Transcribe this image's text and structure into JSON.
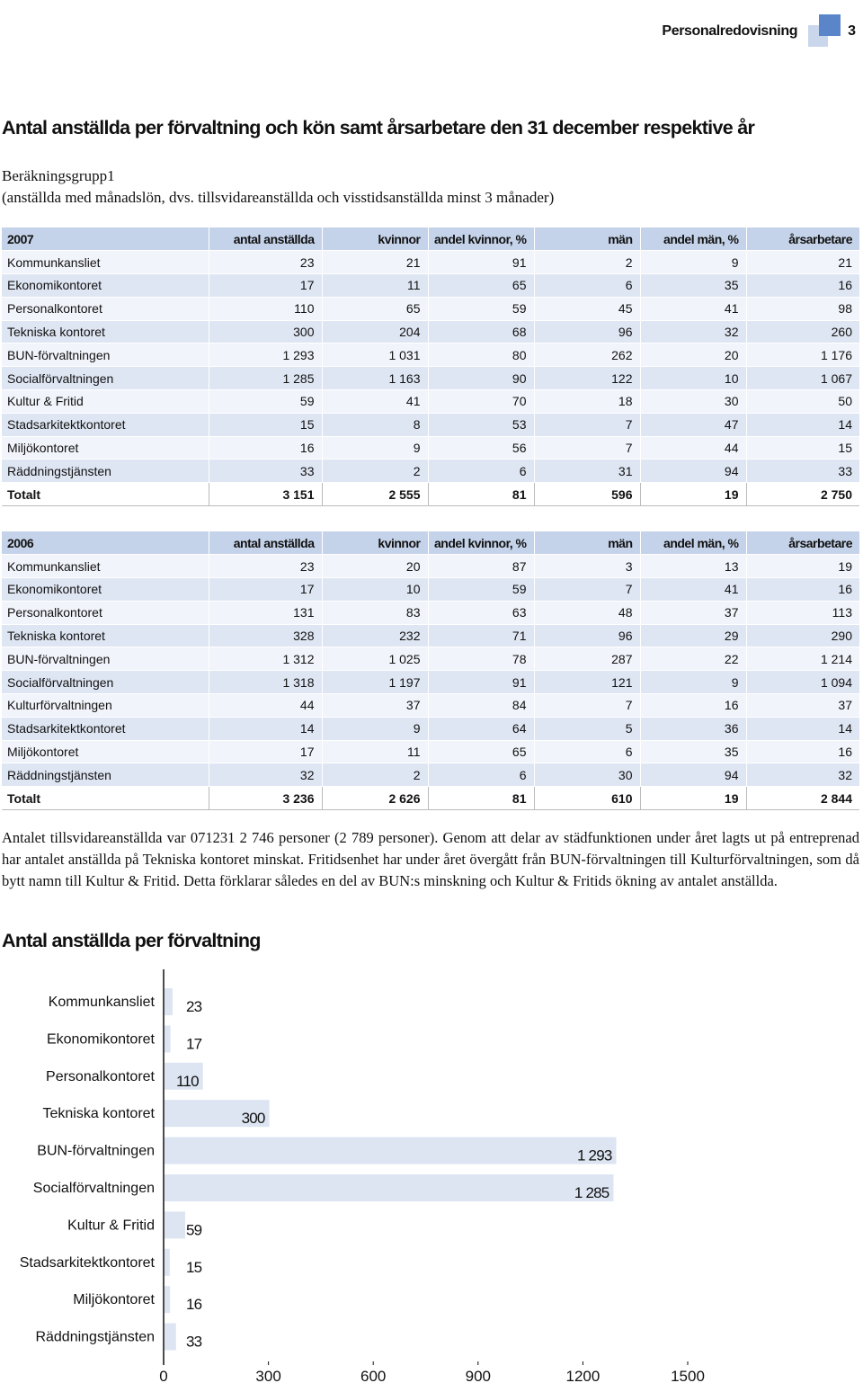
{
  "header": {
    "section": "Personalredovisning",
    "page_number": "3"
  },
  "title": "Antal anställda per förvaltning och kön samt årsarbetare den 31 december respektive år",
  "subtitle_line1": "Beräkningsgrupp1",
  "subtitle_line2": "(anställda med månadslön, dvs. tillsvidareanställda och visstidsanställda minst 3 månader)",
  "tables": [
    {
      "columns": [
        "2007",
        "antal anställda",
        "kvinnor",
        "andel kvinnor, %",
        "män",
        "andel män, %",
        "årsarbetare"
      ],
      "rows": [
        [
          "Kommunkansliet",
          "23",
          "21",
          "91",
          "2",
          "9",
          "21"
        ],
        [
          "Ekonomikontoret",
          "17",
          "11",
          "65",
          "6",
          "35",
          "16"
        ],
        [
          "Personalkontoret",
          "110",
          "65",
          "59",
          "45",
          "41",
          "98"
        ],
        [
          "Tekniska kontoret",
          "300",
          "204",
          "68",
          "96",
          "32",
          "260"
        ],
        [
          "BUN-förvaltningen",
          "1 293",
          "1 031",
          "80",
          "262",
          "20",
          "1 176"
        ],
        [
          "Socialförvaltningen",
          "1 285",
          "1 163",
          "90",
          "122",
          "10",
          "1 067"
        ],
        [
          "Kultur & Fritid",
          "59",
          "41",
          "70",
          "18",
          "30",
          "50"
        ],
        [
          "Stadsarkitektkontoret",
          "15",
          "8",
          "53",
          "7",
          "47",
          "14"
        ],
        [
          "Miljökontoret",
          "16",
          "9",
          "56",
          "7",
          "44",
          "15"
        ],
        [
          "Räddningstjänsten",
          "33",
          "2",
          "6",
          "31",
          "94",
          "33"
        ]
      ],
      "total": [
        "Totalt",
        "3 151",
        "2 555",
        "81",
        "596",
        "19",
        "2 750"
      ]
    },
    {
      "columns": [
        "2006",
        "antal anställda",
        "kvinnor",
        "andel kvinnor, %",
        "män",
        "andel män, %",
        "årsarbetare"
      ],
      "rows": [
        [
          "Kommunkansliet",
          "23",
          "20",
          "87",
          "3",
          "13",
          "19"
        ],
        [
          "Ekonomikontoret",
          "17",
          "10",
          "59",
          "7",
          "41",
          "16"
        ],
        [
          "Personalkontoret",
          "131",
          "83",
          "63",
          "48",
          "37",
          "113"
        ],
        [
          "Tekniska kontoret",
          "328",
          "232",
          "71",
          "96",
          "29",
          "290"
        ],
        [
          "BUN-förvaltningen",
          "1 312",
          "1 025",
          "78",
          "287",
          "22",
          "1 214"
        ],
        [
          "Socialförvaltningen",
          "1 318",
          "1 197",
          "91",
          "121",
          "9",
          "1 094"
        ],
        [
          "Kulturförvaltningen",
          "44",
          "37",
          "84",
          "7",
          "16",
          "37"
        ],
        [
          "Stadsarkitektkontoret",
          "14",
          "9",
          "64",
          "5",
          "36",
          "14"
        ],
        [
          "Miljökontoret",
          "17",
          "11",
          "65",
          "6",
          "35",
          "16"
        ],
        [
          "Räddningstjänsten",
          "32",
          "2",
          "6",
          "30",
          "94",
          "32"
        ]
      ],
      "total": [
        "Totalt",
        "3 236",
        "2 626",
        "81",
        "610",
        "19",
        "2 844"
      ]
    }
  ],
  "paragraph": "Antalet tillsvidareanställda var 071231 2 746 personer (2 789 personer). Genom att delar av städfunktionen under året lagts ut på entreprenad har antalet anställda på Tekniska kontoret minskat. Fritidsenhet har under året övergått från BUN-förvaltningen till Kulturförvaltningen, som då bytt namn till Kultur & Fritid. Detta förklarar således en del av BUN:s minskning och Kultur & Fritids ökning av antalet anställda.",
  "chart_title": "Antal anställda per förvaltning",
  "chart_data": {
    "type": "bar",
    "orientation": "horizontal",
    "title": "Antal anställda per förvaltning",
    "categories": [
      "Kommunkansliet",
      "Ekonomikontoret",
      "Personalkontoret",
      "Tekniska kontoret",
      "BUN-förvaltningen",
      "Socialförvaltningen",
      "Kultur & Fritid",
      "Stadsarkitektkontoret",
      "Miljökontoret",
      "Räddningstjänsten"
    ],
    "values": [
      23,
      17,
      110,
      300,
      1293,
      1285,
      59,
      15,
      16,
      33
    ],
    "value_labels": [
      "23",
      "17",
      "110",
      "300",
      "1 293",
      "1 285",
      "59",
      "15",
      "16",
      "33"
    ],
    "xlim": [
      0,
      1500
    ],
    "xticks": [
      "0",
      "300",
      "600",
      "900",
      "1200",
      "1500"
    ],
    "bar_color": "#dde5f2",
    "grid": false
  }
}
